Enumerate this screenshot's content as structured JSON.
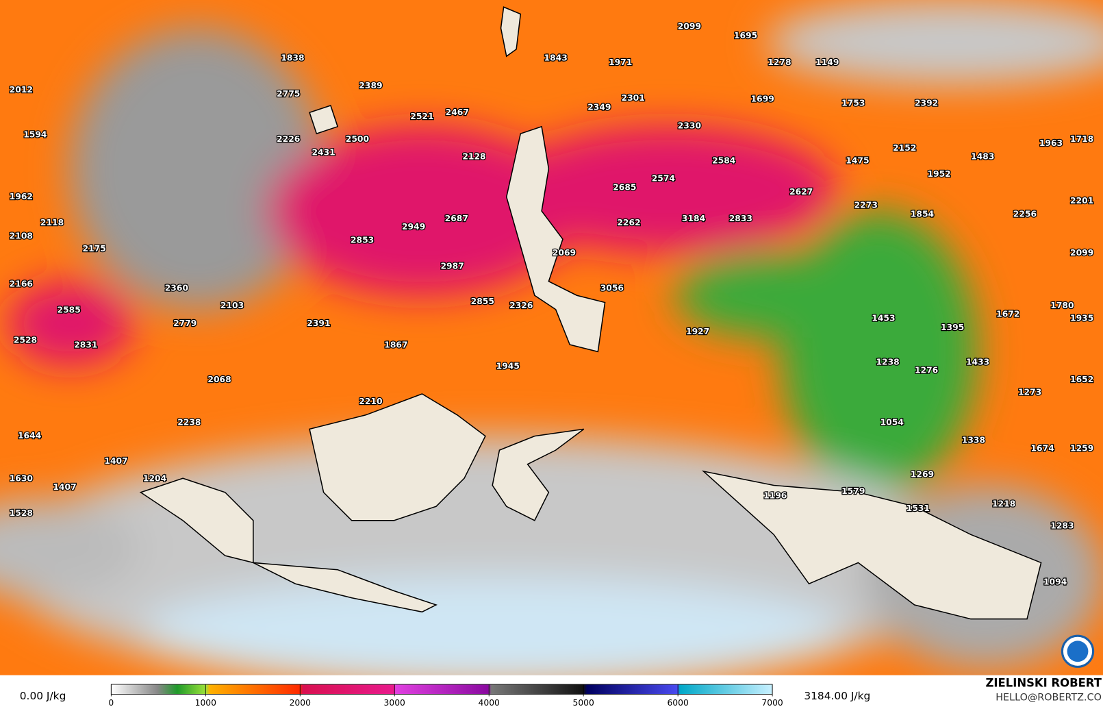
{
  "map": {
    "labels": [
      2099,
      1695,
      1838,
      1843,
      1971,
      1278,
      1149,
      2775,
      2389,
      2012,
      2521,
      2467,
      2349,
      2301,
      1699,
      1753,
      2392,
      1594,
      2226,
      2500,
      2330,
      2431,
      2128,
      2152,
      1475,
      1483,
      1963,
      1718,
      2584,
      2574,
      1952,
      1962,
      2685,
      2627,
      2273,
      2201,
      2118,
      2108,
      2949,
      2687,
      2262,
      3184,
      2833,
      1854,
      2256,
      2853,
      2175,
      2069,
      2099,
      2987,
      2166,
      2360,
      3056,
      2585,
      2103,
      2855,
      2326,
      1780,
      1453,
      1395,
      1672,
      1935,
      2779,
      2391,
      1927,
      2528,
      2831,
      1867,
      1945,
      1238,
      1276,
      1433,
      2068,
      1652,
      1273,
      2210,
      1054,
      2238,
      1644,
      1338,
      1674,
      1259,
      1407,
      1630,
      1269,
      1204,
      1407,
      1579,
      1196,
      1531,
      1218,
      1528,
      1283,
      1094
    ]
  },
  "legend": {
    "min_label": "0.00 J/kg",
    "max_label": "3184.00 J/kg",
    "ticks": [
      0,
      1000,
      2000,
      3000,
      4000,
      5000,
      6000,
      7000
    ]
  },
  "credit": {
    "name": "ZIELINSKI ROBERT",
    "contact": "HELLO@ROBERTZ.CO"
  }
}
